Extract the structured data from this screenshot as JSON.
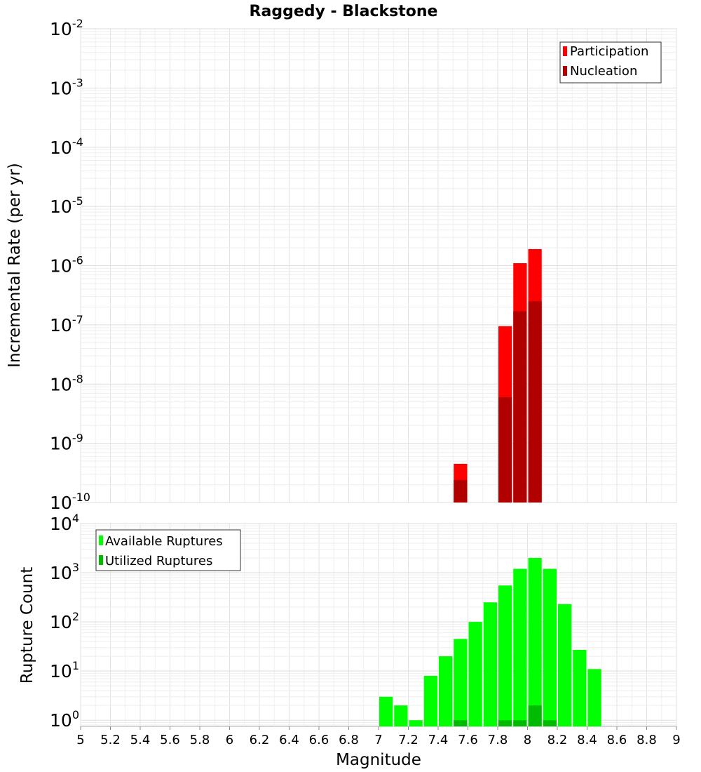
{
  "chart_data": [
    {
      "type": "bar",
      "scale": "log",
      "title": "Raggedy - Blackstone",
      "ylabel": "Incremental Rate (per yr)",
      "xlim": [
        5,
        9
      ],
      "ylim": [
        1e-10,
        0.01
      ],
      "y_tick_exponents": [
        "-10",
        "-9",
        "-8",
        "-7",
        "-6",
        "-5",
        "-4",
        "-3",
        "-2"
      ],
      "y_tick_base": "10",
      "legend_position": "top-right",
      "series": [
        {
          "name": "Participation",
          "color": "#ff0000",
          "x": [
            7.55,
            7.85,
            7.95,
            8.05
          ],
          "values": [
            4.5e-10,
            9.5e-08,
            1.1e-06,
            1.9e-06
          ]
        },
        {
          "name": "Nucleation",
          "color": "#b00000",
          "x": [
            7.55,
            7.85,
            7.95,
            8.05
          ],
          "values": [
            2.4e-10,
            6e-09,
            1.7e-07,
            2.5e-07
          ]
        }
      ],
      "grid": true
    },
    {
      "type": "bar",
      "scale": "log",
      "ylabel": "Rupture Count",
      "xlabel": "Magnitude",
      "xlim": [
        5,
        9
      ],
      "ylim": [
        0.75,
        10000
      ],
      "y_tick_exponents": [
        "0",
        "1",
        "2",
        "3",
        "4"
      ],
      "y_tick_base": "10",
      "x_ticks": [
        "5",
        "5.2",
        "5.4",
        "5.6",
        "5.8",
        "6",
        "6.2",
        "6.4",
        "6.6",
        "6.8",
        "7",
        "7.2",
        "7.4",
        "7.6",
        "7.8",
        "8",
        "8.2",
        "8.4",
        "8.6",
        "8.8",
        "9"
      ],
      "legend_position": "top-left",
      "series": [
        {
          "name": "Available Ruptures",
          "color": "#00ff00",
          "x": [
            7.05,
            7.15,
            7.25,
            7.35,
            7.45,
            7.55,
            7.65,
            7.75,
            7.85,
            7.95,
            8.05,
            8.15,
            8.25,
            8.35,
            8.45
          ],
          "values": [
            3,
            2,
            1,
            8,
            20,
            45,
            100,
            250,
            550,
            1200,
            2000,
            1200,
            230,
            27,
            11
          ]
        },
        {
          "name": "Utilized Ruptures",
          "color": "#00bb00",
          "x": [
            7.55,
            7.85,
            7.95,
            8.05,
            8.15
          ],
          "values": [
            1,
            1,
            1,
            2,
            1
          ]
        }
      ],
      "grid": true
    }
  ]
}
